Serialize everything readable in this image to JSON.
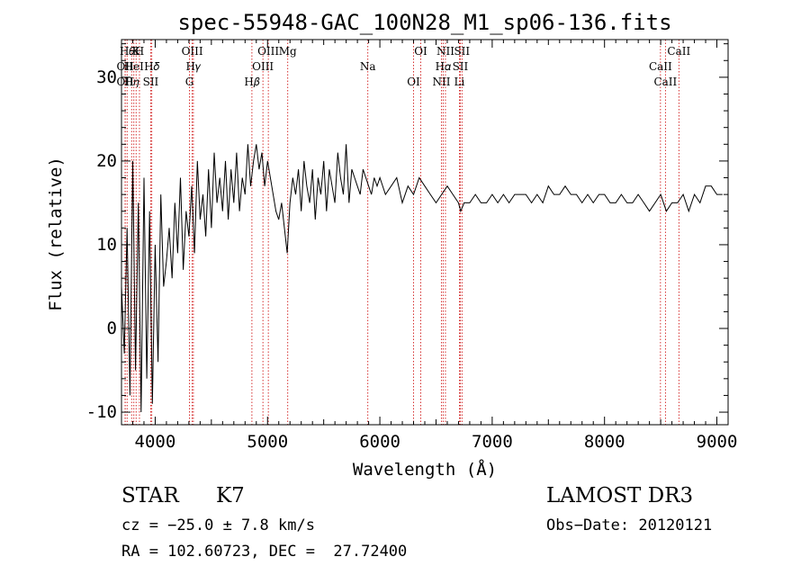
{
  "chart_data": {
    "type": "line",
    "title": "spec-55948-GAC_100N28_M1_sp06-136.fits",
    "xlabel": "Wavelength (Å)",
    "ylabel": "Flux (relative)",
    "xlim": [
      3700,
      9100
    ],
    "ylim": [
      -11.5,
      34.5
    ],
    "xticks": [
      4000,
      5000,
      6000,
      7000,
      8000,
      9000
    ],
    "yticks": [
      -10,
      0,
      10,
      20,
      30
    ],
    "series": [
      {
        "name": "spectrum",
        "x": [
          3700,
          3725,
          3750,
          3775,
          3800,
          3825,
          3850,
          3875,
          3900,
          3925,
          3950,
          3975,
          4000,
          4025,
          4050,
          4075,
          4100,
          4125,
          4150,
          4175,
          4200,
          4225,
          4250,
          4275,
          4300,
          4325,
          4350,
          4375,
          4400,
          4425,
          4450,
          4475,
          4500,
          4525,
          4550,
          4575,
          4600,
          4625,
          4650,
          4675,
          4700,
          4725,
          4750,
          4775,
          4800,
          4825,
          4850,
          4875,
          4900,
          4925,
          4950,
          4975,
          5000,
          5025,
          5050,
          5075,
          5100,
          5125,
          5150,
          5175,
          5200,
          5225,
          5250,
          5275,
          5300,
          5325,
          5350,
          5375,
          5400,
          5425,
          5450,
          5475,
          5500,
          5525,
          5550,
          5575,
          5600,
          5625,
          5650,
          5675,
          5700,
          5725,
          5750,
          5775,
          5800,
          5825,
          5850,
          5875,
          5900,
          5925,
          5950,
          5975,
          6000,
          6050,
          6100,
          6150,
          6200,
          6250,
          6300,
          6350,
          6400,
          6450,
          6500,
          6550,
          6600,
          6650,
          6700,
          6720,
          6750,
          6800,
          6850,
          6900,
          6950,
          7000,
          7050,
          7100,
          7150,
          7200,
          7250,
          7300,
          7350,
          7400,
          7450,
          7500,
          7550,
          7600,
          7650,
          7700,
          7750,
          7800,
          7850,
          7900,
          7950,
          8000,
          8050,
          8100,
          8150,
          8200,
          8250,
          8300,
          8350,
          8400,
          8450,
          8500,
          8550,
          8600,
          8650,
          8700,
          8750,
          8800,
          8850,
          8900,
          8950,
          9000,
          9050
        ],
        "y": [
          5,
          -3,
          12,
          -8,
          20,
          -5,
          15,
          -10,
          18,
          -6,
          14,
          -9,
          10,
          -4,
          16,
          5,
          8,
          12,
          6,
          15,
          9,
          18,
          7,
          14,
          11,
          17,
          9,
          20,
          13,
          16,
          11,
          19,
          12,
          21,
          15,
          18,
          14,
          20,
          13,
          19,
          15,
          21,
          14,
          18,
          16,
          22,
          17,
          20,
          22,
          19,
          21,
          17,
          20,
          18,
          16,
          14,
          13,
          15,
          12,
          9,
          15,
          18,
          16,
          19,
          14,
          20,
          17,
          15,
          19,
          13,
          18,
          16,
          20,
          14,
          19,
          17,
          15,
          21,
          18,
          16,
          22,
          15,
          19,
          18,
          17,
          16,
          19,
          18,
          17,
          16,
          18,
          17,
          18,
          16,
          17,
          18,
          15,
          17,
          16,
          18,
          17,
          16,
          15,
          16,
          17,
          16,
          15,
          14,
          15,
          15,
          16,
          15,
          15,
          16,
          15,
          16,
          15,
          16,
          16,
          16,
          15,
          16,
          15,
          17,
          16,
          16,
          17,
          16,
          16,
          15,
          16,
          15,
          16,
          16,
          15,
          15,
          16,
          15,
          15,
          16,
          15,
          14,
          15,
          16,
          14,
          15,
          15,
          16,
          14,
          16,
          15,
          17,
          17,
          16,
          16
        ]
      }
    ],
    "annotations": [
      {
        "w": 3750,
        "label": "H𝜃"
      },
      {
        "w": 3733,
        "label": "OII"
      },
      {
        "w": 3733,
        "label": "OII"
      },
      {
        "w": 3830,
        "label": "K"
      },
      {
        "w": 3810,
        "label": "HeI"
      },
      {
        "w": 3790,
        "label": "H𝜂"
      },
      {
        "w": 3860,
        "label": "H"
      },
      {
        "w": 3970,
        "label": "H𝛿"
      },
      {
        "w": 3960,
        "label": "SII"
      },
      {
        "w": 4330,
        "label": "OIII"
      },
      {
        "w": 4340,
        "label": "H𝛾"
      },
      {
        "w": 4305,
        "label": "G"
      },
      {
        "w": 5007,
        "label": "OIII"
      },
      {
        "w": 4959,
        "label": "OIII"
      },
      {
        "w": 4861,
        "label": "H𝛽"
      },
      {
        "w": 5180,
        "label": "Mg"
      },
      {
        "w": 5893,
        "label": "Na"
      },
      {
        "w": 6300,
        "label": "OI"
      },
      {
        "w": 6364,
        "label": "OI"
      },
      {
        "w": 6563,
        "label": "H𝛼"
      },
      {
        "w": 6548,
        "label": "NII"
      },
      {
        "w": 6584,
        "label": "NII"
      },
      {
        "w": 6716,
        "label": "SII"
      },
      {
        "w": 6708,
        "label": "Li"
      },
      {
        "w": 6731,
        "label": "SII"
      },
      {
        "w": 8498,
        "label": "CaII"
      },
      {
        "w": 8542,
        "label": "CaII"
      },
      {
        "w": 8662,
        "label": "CaII"
      }
    ],
    "line_color": "#000000",
    "marker_color": "#cc0000"
  },
  "info": {
    "class": "STAR",
    "subclass": "K7",
    "survey": "LAMOST DR3",
    "cz": "cz = −25.0 ± 7.8 km/s",
    "obs_date": "Obs−Date: 20120121",
    "radec": "RA = 102.60723, DEC =  27.72400"
  }
}
